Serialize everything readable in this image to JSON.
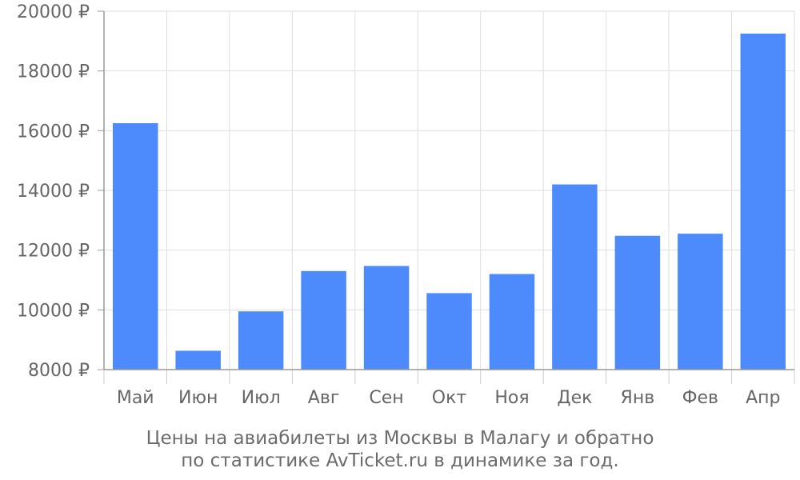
{
  "chart_data": {
    "type": "bar",
    "categories": [
      "Май",
      "Июн",
      "Июл",
      "Авг",
      "Сен",
      "Окт",
      "Ноя",
      "Дек",
      "Янв",
      "Фев",
      "Апр"
    ],
    "values": [
      16250,
      8630,
      9950,
      11300,
      11470,
      10560,
      11200,
      14200,
      12480,
      12550,
      19250
    ],
    "ylim": [
      8000,
      20000
    ],
    "yticks": [
      8000,
      10000,
      12000,
      14000,
      16000,
      18000,
      20000
    ],
    "ytick_labels": [
      "8000 ₽",
      "10000 ₽",
      "12000 ₽",
      "14000 ₽",
      "16000 ₽",
      "18000 ₽",
      "20000 ₽"
    ],
    "grid": true,
    "bar_color": "#4d8afc"
  },
  "caption": {
    "line1": "Цены на авиабилеты из Москвы в Малагу и обратно",
    "line2": "по статистике AvTicket.ru в динамике за год."
  }
}
